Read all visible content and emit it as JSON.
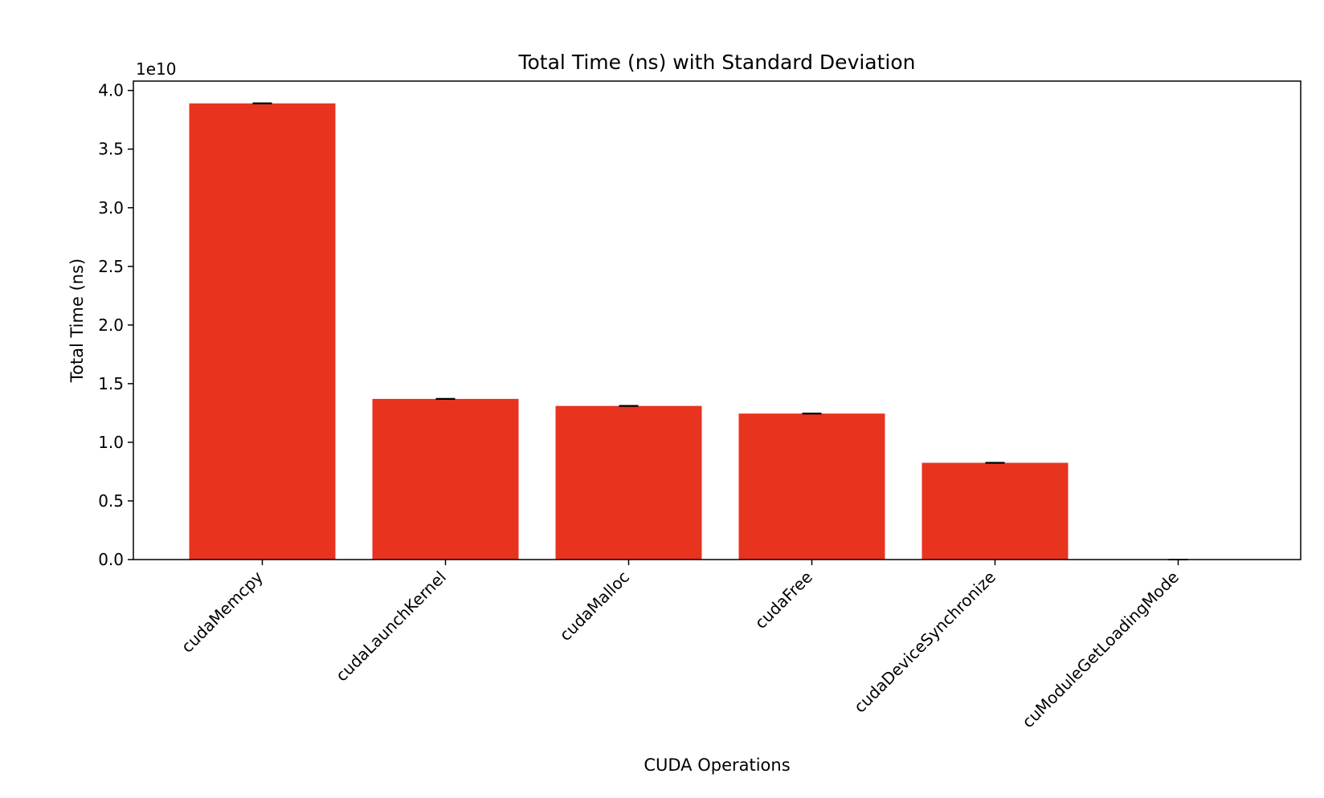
{
  "chart_data": {
    "type": "bar",
    "title": "Total Time (ns) with Standard Deviation",
    "xlabel": "CUDA Operations",
    "ylabel": "Total Time (ns)",
    "y_offset_label": "1e10",
    "y_scale_factor": 10000000000,
    "ylim": [
      0,
      40800000000.0
    ],
    "yticks": [
      0,
      5000000000,
      10000000000,
      15000000000,
      20000000000,
      25000000000,
      30000000000,
      35000000000,
      40000000000
    ],
    "ytick_labels": [
      "0.0",
      "0.5",
      "1.0",
      "1.5",
      "2.0",
      "2.5",
      "3.0",
      "3.5",
      "4.0"
    ],
    "categories": [
      "cudaMemcpy",
      "cudaLaunchKernel",
      "cudaMalloc",
      "cudaFree",
      "cudaDeviceSynchronize",
      "cuModuleGetLoadingMode"
    ],
    "values": [
      38900000000,
      13700000000,
      13100000000,
      12450000000,
      8250000000,
      2000000
    ],
    "errors": [
      10000000,
      10000000,
      10000000,
      10000000,
      10000000,
      0
    ],
    "bar_color": "#e8331f",
    "errorbar_color": "#000000",
    "grid": false,
    "legend": "none"
  }
}
